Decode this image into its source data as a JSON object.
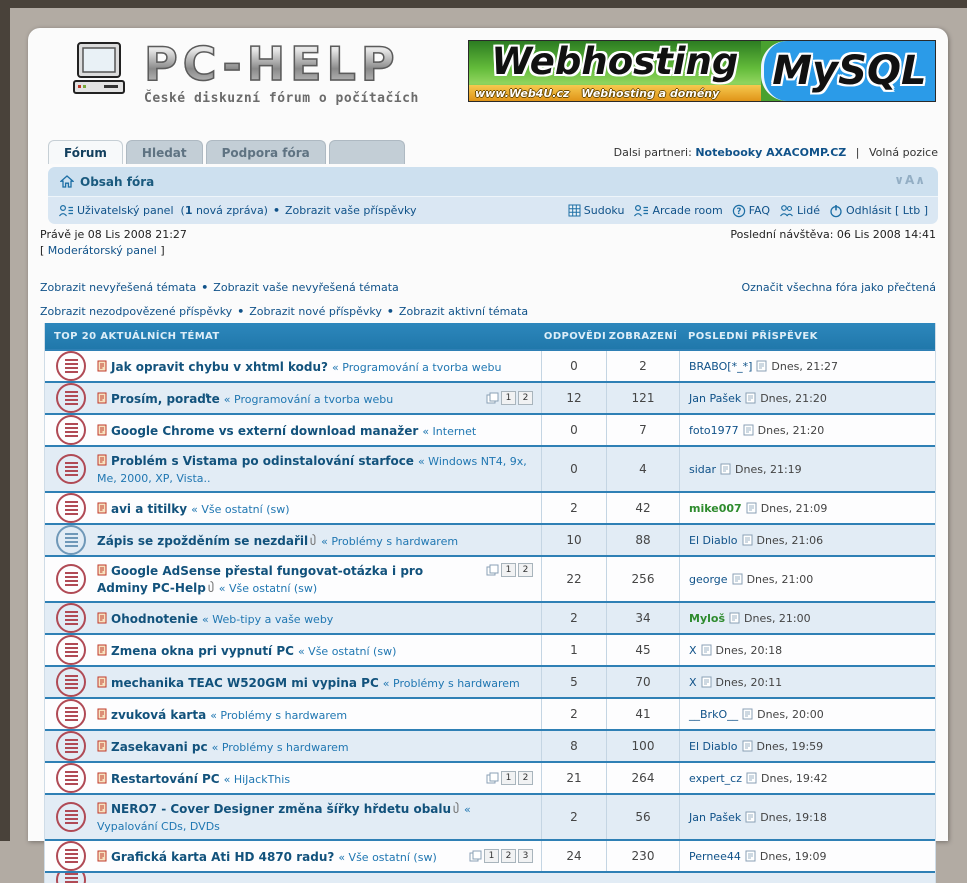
{
  "header": {
    "logo_title": "PC-HELP",
    "logo_subtitle": "České diskuzní fórum o počítačích",
    "banner": {
      "left_text": "Webhosting",
      "right_text": "MySQL",
      "url_text": "www.Web4U.cz",
      "tagline_text": "Webhosting a domény"
    }
  },
  "tabs": [
    {
      "label": "Fórum",
      "active": true
    },
    {
      "label": "Hledat",
      "active": false
    },
    {
      "label": "Podpora fóra",
      "active": false
    },
    {
      "label": "",
      "active": false
    }
  ],
  "partners": {
    "prefix": "Dalsi partneri:",
    "link": "Notebooky AXACOMP.CZ",
    "pipe": "|",
    "second": "Volná pozice"
  },
  "breadcrumb": {
    "title": "Obsah fóra",
    "font_resize": "∨A∧",
    "home_icon": "home-icon"
  },
  "userbar": {
    "left": {
      "panel": "Uživatelský panel",
      "msg_pre": "(",
      "msg_count": "1",
      "msg_post": " nová zpráva)",
      "posts": "Zobrazit vaše příspěvky",
      "icon": "user-list-icon"
    },
    "bullet": "•",
    "right": [
      {
        "label": "Sudoku",
        "icon": "grid-icon"
      },
      {
        "label": "Arcade room",
        "icon": "user-list-icon"
      },
      {
        "label": "FAQ",
        "icon": "question-icon"
      },
      {
        "label": "Lidé",
        "icon": "people-icon"
      },
      {
        "label": "Odhlásit [ Ltb ]",
        "icon": "power-icon"
      }
    ]
  },
  "status": {
    "now": "Právě je 08 Lis 2008 21:27",
    "last_visit": "Poslední návštěva: 06 Lis 2008 14:41",
    "mod_open": "[ ",
    "mod_link": "Moderátorský panel",
    "mod_close": " ]"
  },
  "quicklinks": {
    "row1": [
      "Zobrazit nevyřešená témata",
      "Zobrazit vaše nevyřešená témata"
    ],
    "mark_read": "Označit všechna fóra jako přečtená",
    "row2": [
      "Zobrazit nezodpovězené příspěvky",
      "Zobrazit nové příspěvky",
      "Zobrazit aktivní témata"
    ]
  },
  "topics_table": {
    "title": "TOP 20 AKTUÁLNÍCH TÉMAT",
    "columns": [
      "ODPOVĚDI",
      "ZOBRAZENÍ",
      "POSLEDNÍ PŘÍSPĚVEK"
    ],
    "rows": [
      {
        "icon": "red",
        "unread": true,
        "title": "Jak opravit chybu v xhtml kodu?",
        "category": "Programování a tvorba webu",
        "replies": "0",
        "views": "2",
        "author": "BRABO[*_*]",
        "time": "Dnes, 21:27"
      },
      {
        "icon": "red",
        "unread": true,
        "title": "Prosím, poraďte",
        "category": "Programování a tvorba webu",
        "pages": [
          "1",
          "2"
        ],
        "replies": "12",
        "views": "121",
        "author": "Jan Pašek",
        "time": "Dnes, 21:20"
      },
      {
        "icon": "red",
        "unread": true,
        "title": "Google Chrome vs externí download manažer",
        "category": "Internet",
        "replies": "0",
        "views": "7",
        "author": "foto1977",
        "time": "Dnes, 21:20"
      },
      {
        "icon": "red",
        "unread": true,
        "title": "Problém s Vistama po odinstalování starfoce",
        "category": "Windows NT4, 9x, Me, 2000, XP, Vista..",
        "replies": "0",
        "views": "4",
        "author": "sidar",
        "time": "Dnes, 21:19"
      },
      {
        "icon": "red",
        "unread": true,
        "title": "avi a titilky",
        "category": "Vše ostatní (sw)",
        "replies": "2",
        "views": "42",
        "author": "mike007",
        "author_green": true,
        "time": "Dnes, 21:09"
      },
      {
        "icon": "blue",
        "unread": false,
        "title": "Zápis se zpožděním se nezdařil",
        "attachment": true,
        "category": "Problémy s hardwarem",
        "replies": "10",
        "views": "88",
        "author": "El Diablo",
        "time": "Dnes, 21:06"
      },
      {
        "icon": "red",
        "unread": true,
        "title": "Google AdSense přestal fungovat-otázka i pro Adminy PC-Help",
        "attachment": true,
        "category": "Vše ostatní (sw)",
        "pages": [
          "1",
          "2"
        ],
        "replies": "22",
        "views": "256",
        "author": "george",
        "time": "Dnes, 21:00"
      },
      {
        "icon": "red",
        "unread": true,
        "title": "Ohodnotenie",
        "category": "Web-tipy a vaše weby",
        "replies": "2",
        "views": "34",
        "author": "Myloš",
        "author_green": true,
        "time": "Dnes, 21:00"
      },
      {
        "icon": "red",
        "unread": true,
        "title": "Zmena okna pri vypnutí PC",
        "category": "Vše ostatní (sw)",
        "replies": "1",
        "views": "45",
        "author": "X",
        "time": "Dnes, 20:18"
      },
      {
        "icon": "red",
        "unread": true,
        "title": "mechanika TEAC W520GM mi vypina PC",
        "category": "Problémy s hardwarem",
        "replies": "5",
        "views": "70",
        "author": "X",
        "time": "Dnes, 20:11"
      },
      {
        "icon": "red",
        "unread": true,
        "title": "zvuková karta",
        "category": "Problémy s hardwarem",
        "replies": "2",
        "views": "41",
        "author": "__BrkO__",
        "time": "Dnes, 20:00"
      },
      {
        "icon": "red",
        "unread": true,
        "title": "Zasekavani pc",
        "category": "Problémy s hardwarem",
        "replies": "8",
        "views": "100",
        "author": "El Diablo",
        "time": "Dnes, 19:59"
      },
      {
        "icon": "red",
        "unread": true,
        "title": "Restartování PC",
        "category": "HiJackThis",
        "pages": [
          "1",
          "2"
        ],
        "replies": "21",
        "views": "264",
        "author": "expert_cz",
        "time": "Dnes, 19:42"
      },
      {
        "icon": "red",
        "unread": true,
        "title": "NERO7 - Cover Designer změna šířky hřdetu obalu",
        "attachment": true,
        "category": "Vypalování CDs, DVDs",
        "replies": "2",
        "views": "56",
        "author": "Jan Pašek",
        "time": "Dnes, 19:18"
      },
      {
        "icon": "red",
        "unread": true,
        "title": "Grafická karta Ati HD 4870 radu?",
        "category": "Vše ostatní (sw)",
        "pages": [
          "1",
          "2",
          "3"
        ],
        "replies": "24",
        "views": "230",
        "author": "Pernee44",
        "time": "Dnes, 19:09"
      },
      {
        "icon": "red",
        "partial": true
      }
    ]
  },
  "colors": {
    "accent_blue": "#2f80b5",
    "link_blue": "#105289",
    "green_user": "#2e8b2e",
    "topic_red": "#b04a55",
    "topic_blue": "#6f98b8"
  }
}
